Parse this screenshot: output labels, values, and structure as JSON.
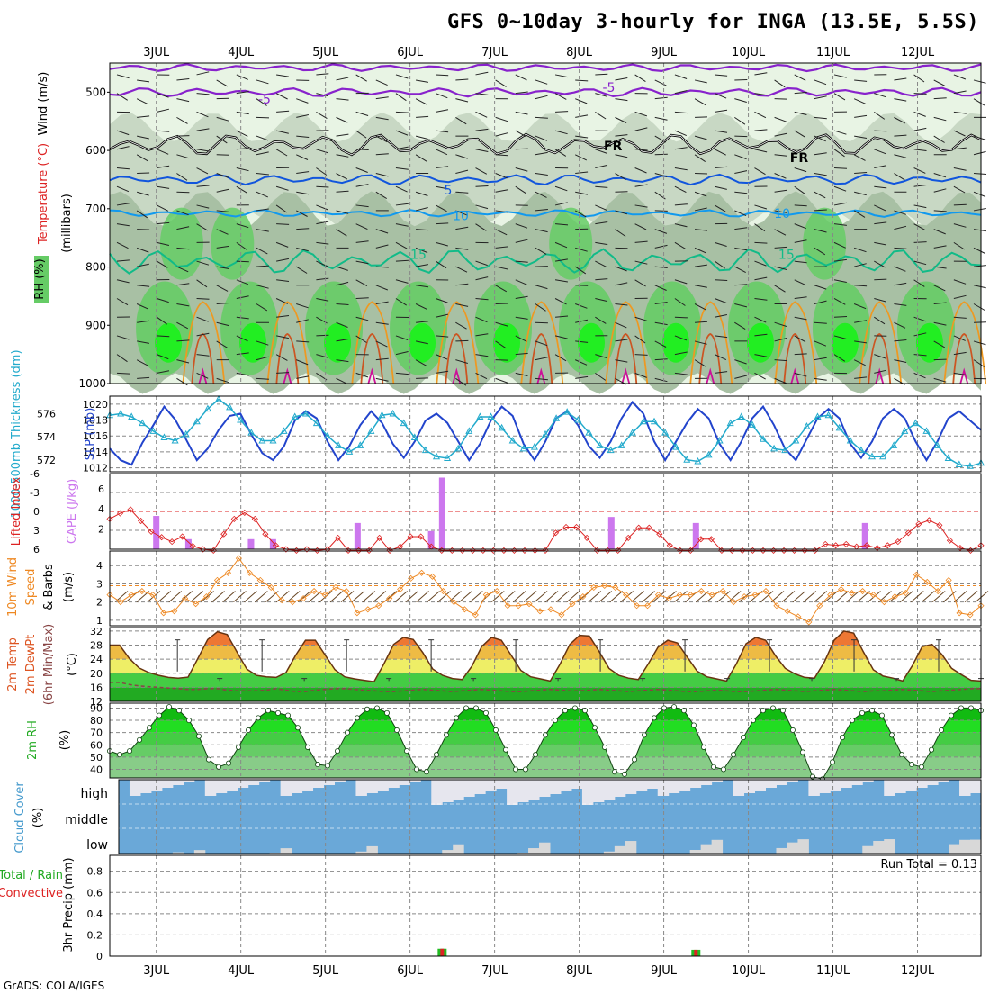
{
  "title": "GFS 0~10day 3-hourly for INGA (13.5E, 5.5S)",
  "footer": "GrADS: COLA/IGES",
  "colors": {
    "grid": "#888888",
    "rh_light": "#e8f4e4",
    "rh_mid": "#c8d8c4",
    "rh_dark": "#a8c0a4",
    "rh_green": "#66cc66",
    "rh_bright": "#22ee22",
    "temp_neg5": "#8822cc",
    "temp_fr": "#000000",
    "temp_5": "#1155dd",
    "temp_10": "#1199ee",
    "temp_15": "#11bb88",
    "temp_20": "#ee9922",
    "temp_25": "#cc5522",
    "temp_30": "#cc1199",
    "thickness": "#2244cc",
    "slp": "#22aacc",
    "cape": "#cc77ee",
    "lifted": "#dd2222",
    "wind10": "#ee8822",
    "barb": "#664422",
    "cloud": "#6aa8d8",
    "cloud_gap": "#e6e6ee",
    "precip_total": "#22bb22",
    "precip_conv": "#dd2222"
  },
  "dates": [
    "3JUL",
    "4JUL",
    "5JUL",
    "6JUL",
    "7JUL",
    "8JUL",
    "9JUL",
    "10JUL",
    "11JUL",
    "12JUL"
  ],
  "panels": {
    "upper": {
      "ylabel_wind": "Wind (m/s)",
      "ylabel_temp": "Temperature (°C)",
      "ylabel_rh": "RH (%)",
      "ylabel_mb": "(millibars)",
      "pressure_ticks": [
        500,
        600,
        700,
        800,
        900,
        1000
      ],
      "contour_labels": [
        {
          "text": "-5",
          "day": 1.28,
          "p": 512,
          "key": "temp_neg5"
        },
        {
          "text": "-5",
          "day": 5.35,
          "p": 492,
          "key": "temp_neg5"
        },
        {
          "text": "FR",
          "day": 5.4,
          "p": 592,
          "key": "temp_fr"
        },
        {
          "text": "FR",
          "day": 7.6,
          "p": 612,
          "key": "temp_fr"
        },
        {
          "text": "5",
          "day": 3.45,
          "p": 668,
          "key": "temp_5"
        },
        {
          "text": "10",
          "day": 3.6,
          "p": 712,
          "key": "temp_10"
        },
        {
          "text": "10",
          "day": 7.4,
          "p": 708,
          "key": "temp_10"
        },
        {
          "text": "15",
          "day": 3.1,
          "p": 778,
          "key": "temp_15"
        },
        {
          "text": "15",
          "day": 7.45,
          "p": 778,
          "key": "temp_15"
        }
      ]
    },
    "thickness": {
      "ylabel_left": "1000-500mb Thickness (dm)",
      "ylabel_right": "SLP (mb)",
      "left_ticks": [
        572,
        574,
        576
      ],
      "right_ticks": [
        1012,
        1014,
        1016,
        1018,
        1020
      ]
    },
    "lifted": {
      "ylabel_left": "Lifted Index",
      "ylabel_right": "CAPE (J/kg)",
      "left_ticks": [
        "-6",
        "-3",
        "0",
        "3",
        "6"
      ],
      "right_ticks": [
        "2",
        "4",
        "6"
      ]
    },
    "wind10": {
      "ylabel_a": "10m Wind",
      "ylabel_b": "Speed",
      "ylabel_c": "& Barbs",
      "ylabel_unit": "(m/s)",
      "ticks": [
        1,
        2,
        3,
        4
      ]
    },
    "temp2m": {
      "ylabel_a": "2m Temp",
      "ylabel_b": "2m DewPt",
      "ylabel_c": "(6hr Min/Max)",
      "ylabel_unit": "(°C)",
      "ticks": [
        12,
        16,
        20,
        24,
        28,
        32
      ]
    },
    "rh2m": {
      "ylabel": "2m RH",
      "ylabel_unit": "(%)",
      "ticks": [
        40,
        50,
        60,
        70,
        80,
        90
      ]
    },
    "cloud": {
      "ylabel": "Cloud Cover",
      "ylabel_unit": "(%)",
      "levels": [
        "high",
        "middle",
        "low"
      ]
    },
    "precip": {
      "ylabel_a": "3hr Precip (mm)",
      "ylabel_b": "Total / Rain",
      "ylabel_c": "Convective",
      "ticks": [
        "0",
        "0.2",
        "0.4",
        "0.6",
        "0.8"
      ],
      "run_total": "Run Total = 0.13"
    }
  },
  "chart_data": [
    {
      "type": "heatmap",
      "title": "Wind / Temperature / RH vs pressure",
      "ylabel": "millibars",
      "ylim": [
        1000,
        450
      ],
      "x": "days 0-10 (3-hourly)",
      "temperature_contours": [
        {
          "level": -5,
          "pressure_mb_approx": 500
        },
        {
          "level": "FR",
          "pressure_mb_approx": 590
        },
        {
          "level": 5,
          "pressure_mb_approx": 650
        },
        {
          "level": 10,
          "pressure_mb_approx": 708
        },
        {
          "level": 15,
          "pressure_mb_approx": 790
        }
      ]
    },
    {
      "type": "line",
      "title": "1000-500mb Thickness / SLP",
      "series": [
        {
          "name": "1000-500mb Thickness (dm)",
          "values": [
            573.0,
            572.0,
            571.6,
            573.5,
            575.0,
            576.6,
            575.5,
            573.8,
            572.0,
            573.0,
            574.6,
            575.8,
            576.0,
            574.2,
            572.6,
            572.0,
            573.2,
            575.4,
            576.2,
            575.6,
            573.6,
            572.0,
            573.2,
            575.0,
            576.2,
            575.2,
            573.4,
            572.2,
            573.6,
            575.4,
            576.0,
            575.2,
            573.6,
            572.0,
            573.4,
            575.4,
            576.6,
            575.8,
            573.4,
            572.0,
            573.6,
            575.6,
            576.2,
            575.0,
            573.2,
            572.2,
            573.6,
            575.6,
            577.0,
            576.0,
            573.6,
            572.0,
            573.6,
            575.2,
            576.4,
            575.6,
            573.4,
            572.0,
            573.6,
            575.6,
            576.6,
            575.0,
            573.0,
            572.0,
            573.8,
            575.6,
            576.4,
            575.6,
            573.4,
            572.2,
            573.6,
            575.6,
            576.4,
            575.6,
            573.6,
            572.0,
            573.6,
            575.6,
            576.2,
            575.4,
            574.6
          ]
        },
        {
          "name": "SLP (mb)",
          "values": [
            1018.6,
            1018.8,
            1018.4,
            1017.6,
            1016.6,
            1015.8,
            1015.4,
            1016.2,
            1017.8,
            1019.4,
            1020.6,
            1019.6,
            1018.0,
            1016.4,
            1015.4,
            1015.4,
            1016.6,
            1018.4,
            1018.8,
            1017.6,
            1016.0,
            1014.8,
            1014.0,
            1014.8,
            1016.6,
            1018.6,
            1018.8,
            1017.6,
            1015.8,
            1014.2,
            1013.4,
            1013.2,
            1014.4,
            1016.6,
            1018.4,
            1018.4,
            1017.0,
            1015.4,
            1014.4,
            1014.6,
            1016.2,
            1018.2,
            1019.0,
            1018.0,
            1016.4,
            1014.8,
            1014.2,
            1014.8,
            1016.4,
            1017.8,
            1017.8,
            1016.4,
            1014.6,
            1013.0,
            1012.8,
            1013.6,
            1015.4,
            1017.6,
            1018.4,
            1017.4,
            1015.6,
            1014.4,
            1014.2,
            1015.4,
            1017.2,
            1018.4,
            1018.6,
            1017.0,
            1015.4,
            1014.2,
            1013.4,
            1013.4,
            1014.8,
            1016.6,
            1017.6,
            1016.6,
            1014.8,
            1013.2,
            1012.4,
            1012.2,
            1012.6
          ]
        }
      ],
      "ylim_left": [
        571,
        577.5
      ],
      "ylim_right": [
        1011.5,
        1021
      ]
    },
    {
      "type": "bar",
      "title": "Lifted Index / CAPE",
      "series": [
        {
          "name": "Lifted Index",
          "values": [
            1.2,
            0.3,
            -0.3,
            1.5,
            3.2,
            4.1,
            4.8,
            4.0,
            5.5,
            6.0,
            6.2,
            3.6,
            1.2,
            0.2,
            1.2,
            3.6,
            5.4,
            6.0,
            6.2,
            6.0,
            6.2,
            6.0,
            4.2,
            6.2,
            6.2,
            6.2,
            4.2,
            6.2,
            5.6,
            4.0,
            4.0,
            5.6,
            6.2,
            6.2,
            6.2,
            6.2,
            6.2,
            6.2,
            6.2,
            6.2,
            6.2,
            6.2,
            6.2,
            3.4,
            2.5,
            2.5,
            4.2,
            6.2,
            6.2,
            6.2,
            4.2,
            2.6,
            2.6,
            3.6,
            5.4,
            6.2,
            6.2,
            4.4,
            4.4,
            6.2,
            6.2,
            6.2,
            6.2,
            6.2,
            6.2,
            6.2,
            6.2,
            6.2,
            6.2,
            5.2,
            5.4,
            5.2,
            5.6,
            5.4,
            5.8,
            5.4,
            4.8,
            3.4,
            2.0,
            1.4,
            2.2,
            4.6,
            5.8,
            6.2,
            5.4
          ]
        },
        {
          "name": "CAPE (J/kg)",
          "bars": [
            {
              "day": 0.0,
              "value": 3.3
            },
            {
              "day": 0.38,
              "value": 1.0
            },
            {
              "day": 1.12,
              "value": 1.0
            },
            {
              "day": 1.38,
              "value": 1.0
            },
            {
              "day": 2.38,
              "value": 2.6
            },
            {
              "day": 3.25,
              "value": 1.8
            },
            {
              "day": 3.38,
              "value": 7.1
            },
            {
              "day": 5.38,
              "value": 3.2
            },
            {
              "day": 6.38,
              "value": 2.6
            },
            {
              "day": 8.38,
              "value": 2.6
            }
          ]
        }
      ],
      "ylim_left": [
        6,
        -6
      ],
      "ylim_right": [
        0,
        7.5
      ]
    },
    {
      "type": "line",
      "title": "10m Wind Speed & Barbs",
      "ylabel": "m/s",
      "series": [
        {
          "name": "10m Wind Speed",
          "values": [
            2.4,
            2.0,
            2.4,
            2.6,
            2.4,
            1.4,
            1.5,
            2.2,
            1.9,
            2.3,
            3.2,
            3.6,
            4.4,
            3.6,
            3.2,
            2.8,
            2.1,
            2.0,
            2.2,
            2.6,
            2.4,
            2.8,
            2.6,
            1.4,
            1.6,
            1.8,
            2.2,
            2.7,
            3.3,
            3.6,
            3.4,
            2.6,
            2.0,
            1.6,
            1.3,
            2.4,
            2.6,
            1.8,
            1.8,
            1.9,
            1.5,
            1.6,
            1.3,
            1.9,
            2.3,
            2.8,
            2.9,
            2.8,
            2.4,
            1.8,
            1.8,
            2.4,
            2.2,
            2.4,
            2.4,
            2.6,
            2.4,
            2.6,
            2.0,
            2.3,
            2.4,
            2.6,
            1.8,
            1.5,
            1.2,
            0.9,
            1.8,
            2.4,
            2.7,
            2.5,
            2.6,
            2.4,
            2.0,
            2.3,
            2.5,
            3.5,
            3.1,
            2.6,
            3.2,
            1.4,
            1.3,
            1.8
          ]
        }
      ],
      "ylim": [
        0.7,
        4.8
      ]
    },
    {
      "type": "area",
      "title": "2m Temp / 2m DewPt (6hr Min/Max)",
      "ylabel": "°C",
      "series": [
        {
          "name": "2m Temp",
          "values": [
            28.0,
            28.0,
            24.2,
            21.5,
            20.2,
            19.4,
            18.8,
            18.6,
            18.9,
            24.2,
            29.6,
            31.8,
            31.0,
            26.0,
            21.2,
            19.4,
            19.0,
            18.8,
            20.2,
            25.2,
            29.4,
            29.4,
            25.2,
            21.0,
            19.0,
            18.4,
            18.0,
            17.6,
            22.6,
            28.2,
            30.2,
            29.6,
            25.8,
            21.2,
            19.4,
            18.5,
            18.2,
            22.0,
            27.6,
            30.2,
            29.4,
            25.2,
            20.8,
            19.0,
            18.4,
            17.8,
            22.6,
            28.2,
            30.8,
            30.6,
            26.2,
            21.4,
            19.4,
            18.6,
            18.2,
            22.6,
            27.4,
            29.4,
            28.6,
            24.6,
            20.6,
            19.0,
            18.4,
            17.8,
            22.6,
            28.4,
            30.2,
            29.4,
            25.0,
            21.4,
            19.8,
            18.8,
            18.6,
            23.2,
            29.4,
            32.0,
            31.4,
            26.0,
            21.0,
            19.2,
            18.6,
            17.8,
            22.2,
            27.6,
            28.2,
            25.4,
            21.4,
            19.6,
            18.0,
            17.8
          ]
        },
        {
          "name": "2m DewPt",
          "values": [
            17.4,
            17.4,
            16.8,
            16.4,
            16.2,
            16.0,
            15.8,
            15.6,
            15.4,
            15.4,
            15.6,
            15.6,
            15.2,
            15.0,
            15.0,
            15.0,
            15.2,
            15.6,
            15.2,
            14.8,
            14.8,
            15.2,
            15.4,
            15.6,
            15.6,
            15.4,
            15.2,
            15.0,
            14.8,
            14.8,
            15.0,
            15.2,
            15.4,
            15.2,
            15.0,
            14.8,
            15.0,
            15.2,
            15.4,
            15.2,
            15.0,
            14.8,
            14.8,
            15.0,
            15.2,
            15.4,
            15.2,
            15.0,
            15.0,
            15.2,
            15.4,
            15.2,
            15.0,
            14.8,
            15.0,
            15.2,
            15.4,
            15.2,
            15.0,
            14.8,
            14.8,
            15.0,
            15.2,
            15.0,
            14.8,
            14.8,
            15.0,
            15.2,
            15.4,
            15.2,
            15.0,
            14.8,
            15.0,
            15.2,
            15.4,
            15.2,
            15.0,
            14.8,
            15.0,
            15.0,
            15.2,
            15.4,
            15.2,
            15.0,
            14.8,
            15.0,
            15.2,
            15.4,
            15.6,
            15.6
          ]
        }
      ],
      "ylim": [
        12,
        33
      ]
    },
    {
      "type": "area",
      "title": "2m RH",
      "ylabel": "%",
      "series": [
        {
          "name": "2m RH",
          "values": [
            55,
            52,
            55,
            64,
            74,
            84,
            91,
            88,
            80,
            67,
            48,
            42,
            45,
            58,
            72,
            82,
            88,
            86,
            84,
            74,
            58,
            44,
            43,
            55,
            70,
            82,
            89,
            90,
            86,
            72,
            55,
            40,
            38,
            52,
            68,
            82,
            90,
            90,
            86,
            72,
            56,
            40,
            40,
            52,
            68,
            80,
            88,
            90,
            88,
            74,
            58,
            38,
            36,
            48,
            68,
            82,
            90,
            91,
            88,
            76,
            58,
            42,
            40,
            52,
            66,
            80,
            88,
            90,
            88,
            72,
            54,
            34,
            32,
            46,
            66,
            80,
            86,
            88,
            84,
            68,
            52,
            44,
            42,
            56,
            72,
            84,
            90,
            90,
            88
          ]
        }
      ],
      "ylim": [
        33,
        94
      ]
    },
    {
      "type": "bar",
      "title": "Cloud Cover",
      "ylabel": "%",
      "categories": [
        "high",
        "middle",
        "low"
      ]
    },
    {
      "type": "bar",
      "title": "3hr Precip (mm)",
      "ylabel": "mm",
      "ylim": [
        0,
        0.95
      ],
      "series": [
        {
          "name": "Total / Rain",
          "bars": [
            {
              "day": 3.38,
              "value": 0.07
            },
            {
              "day": 6.38,
              "value": 0.06
            }
          ]
        },
        {
          "name": "Convective",
          "bars": [
            {
              "day": 3.38,
              "value": 0.07
            },
            {
              "day": 6.38,
              "value": 0.06
            }
          ]
        }
      ]
    }
  ]
}
